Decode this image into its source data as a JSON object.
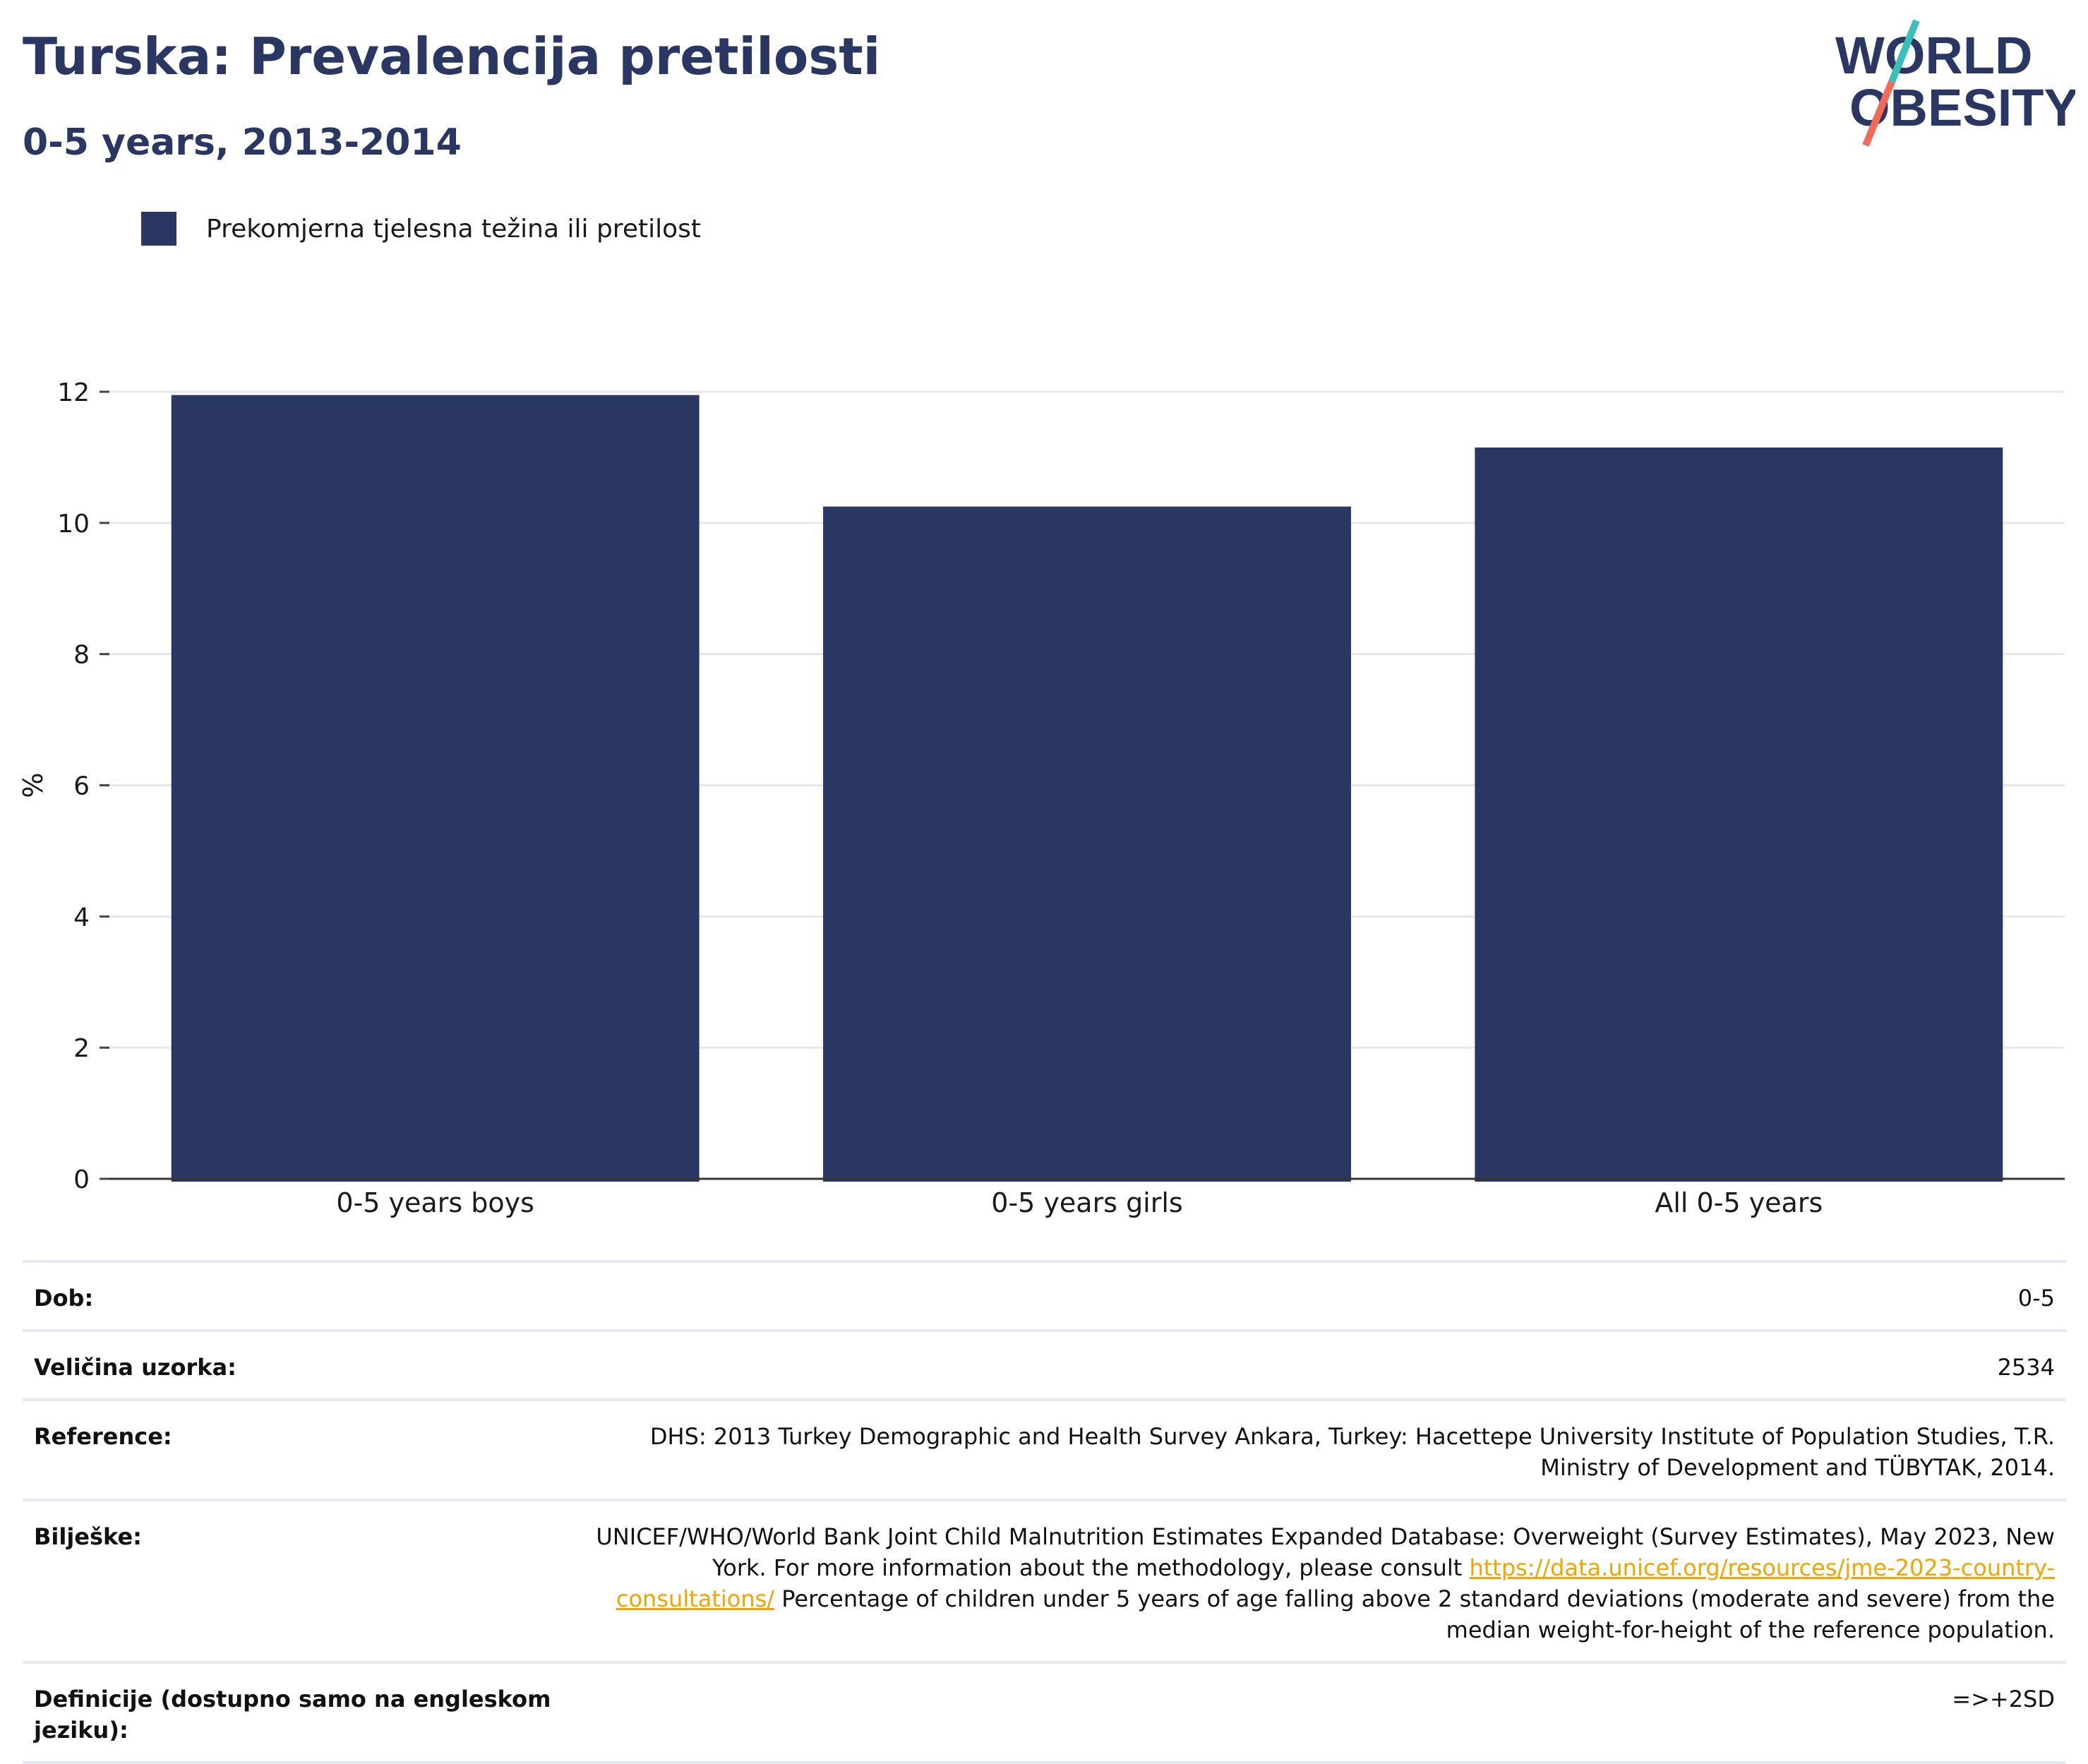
{
  "header": {
    "title": "Turska: Prevalencija pretilosti",
    "subtitle": "0-5 years, 2013-2014"
  },
  "logo": {
    "line1": "WORLD",
    "line2": "OBESITY",
    "colors": {
      "text": "#2a3763",
      "slash_top": "#3bbfb8",
      "slash_bottom": "#ef6b57"
    }
  },
  "legend": {
    "label": "Prekomjerna tjelesna težina ili pretilost",
    "color": "#2a3763"
  },
  "chart_data": {
    "type": "bar",
    "categories": [
      "0-5 years boys",
      "0-5 years girls",
      "All 0-5 years"
    ],
    "series": [
      {
        "name": "Prekomjerna tjelesna težina ili pretilost",
        "values": [
          11.95,
          10.25,
          11.15
        ],
        "color": "#2a3763"
      }
    ],
    "ylabel": "%",
    "ylim": [
      0,
      12
    ],
    "yticks": [
      0,
      2,
      4,
      6,
      8,
      10,
      12
    ],
    "grid": true
  },
  "info": {
    "rows": [
      {
        "label": "Dob:",
        "value": "0-5"
      },
      {
        "label": "Veličina uzorka:",
        "value": "2534"
      },
      {
        "label": "Reference:",
        "value": "DHS: 2013 Turkey Demographic and Health Survey Ankara, Turkey: Hacettepe University Institute of Population Studies, T.R. Ministry of Development and TÜBYTAK, 2014."
      },
      {
        "label": "Bilješke:",
        "value_before": "UNICEF/WHO/World Bank Joint Child Malnutrition Estimates Expanded Database: Overweight (Survey Estimates), May 2023, New York. For more information about the methodology, please consult ",
        "link": "https://data.unicef.org/resources/jme-2023-country-consultations/",
        "value_after": " Percentage of children under 5 years of age falling above 2 standard deviations (moderate and severe) from the median weight-for-height of the reference population."
      },
      {
        "label": "Definicije (dostupno samo na engleskom jeziku):",
        "value": "=>+2SD"
      }
    ]
  }
}
